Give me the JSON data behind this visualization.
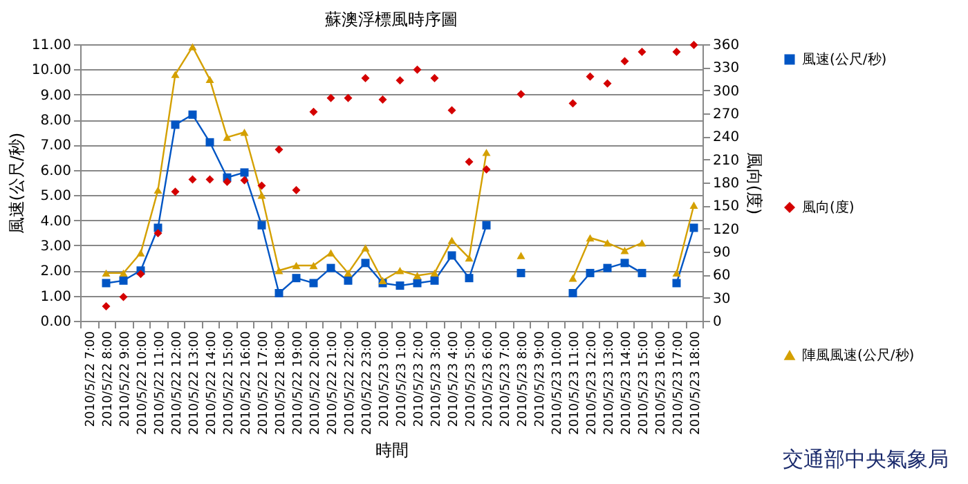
{
  "chart_data": {
    "type": "line",
    "title": "蘇澳浮標風時序圖",
    "xlabel": "時間",
    "ylabel": "風速(公尺/秒)",
    "y2label": "風向(度)",
    "categories": [
      "2010/5/22 7:00",
      "2010/5/22 8:00",
      "2010/5/22 9:00",
      "2010/5/22 10:00",
      "2010/5/22 11:00",
      "2010/5/22 12:00",
      "2010/5/22 13:00",
      "2010/5/22 14:00",
      "2010/5/22 15:00",
      "2010/5/22 16:00",
      "2010/5/22 17:00",
      "2010/5/22 18:00",
      "2010/5/22 19:00",
      "2010/5/22 20:00",
      "2010/5/22 21:00",
      "2010/5/22 22:00",
      "2010/5/22 23:00",
      "2010/5/23 0:00",
      "2010/5/23 1:00",
      "2010/5/23 2:00",
      "2010/5/23 3:00",
      "2010/5/23 4:00",
      "2010/5/23 5:00",
      "2010/5/23 6:00",
      "2010/5/23 7:00",
      "2010/5/23 8:00",
      "2010/5/23 9:00",
      "2010/5/23 10:00",
      "2010/5/23 11:00",
      "2010/5/23 12:00",
      "2010/5/23 13:00",
      "2010/5/23 14:00",
      "2010/5/23 15:00",
      "2010/5/23 16:00",
      "2010/5/23 17:00",
      "2010/5/23 18:00"
    ],
    "series": [
      {
        "name": "風速(公尺/秒)",
        "axis": "y",
        "marker": "square",
        "color": "#0055c4",
        "values": [
          null,
          1.5,
          1.6,
          2.0,
          3.7,
          7.8,
          8.2,
          7.1,
          5.7,
          5.9,
          3.8,
          1.1,
          1.7,
          1.5,
          2.1,
          1.6,
          2.3,
          1.5,
          1.4,
          1.5,
          1.6,
          2.6,
          1.7,
          3.8,
          null,
          1.9,
          null,
          null,
          1.1,
          1.9,
          2.1,
          2.3,
          1.9,
          null,
          1.5,
          3.7
        ]
      },
      {
        "name": "風向(度)",
        "type": "scatter",
        "axis": "y2",
        "marker": "diamond",
        "color": "#d40000",
        "values": [
          null,
          19,
          31,
          61,
          114,
          168,
          184,
          184,
          181,
          183,
          176,
          223,
          170,
          272,
          290,
          290,
          316,
          288,
          313,
          327,
          316,
          274,
          207,
          197,
          null,
          295,
          null,
          null,
          283,
          318,
          309,
          338,
          350,
          null,
          350,
          359
        ]
      },
      {
        "name": "陣風風速(公尺/秒)",
        "axis": "y",
        "marker": "triangle",
        "color": "#d4a000",
        "values": [
          null,
          1.9,
          1.9,
          2.7,
          5.2,
          9.8,
          10.9,
          9.6,
          7.3,
          7.5,
          5.0,
          2.0,
          2.2,
          2.2,
          2.7,
          1.9,
          2.9,
          1.6,
          2.0,
          1.8,
          1.9,
          3.2,
          2.5,
          6.7,
          null,
          2.6,
          null,
          null,
          1.7,
          3.3,
          3.1,
          2.8,
          3.1,
          null,
          1.9,
          4.6
        ]
      }
    ],
    "ylim": [
      0,
      11
    ],
    "yticks": [
      {
        "value": 0,
        "label": "0.00"
      },
      {
        "value": 1,
        "label": "1.00"
      },
      {
        "value": 2,
        "label": "2.00"
      },
      {
        "value": 3,
        "label": "3.00"
      },
      {
        "value": 4,
        "label": "4.00"
      },
      {
        "value": 5,
        "label": "5.00"
      },
      {
        "value": 6,
        "label": "6.00"
      },
      {
        "value": 7,
        "label": "7.00"
      },
      {
        "value": 8,
        "label": "8.00"
      },
      {
        "value": 9,
        "label": "9.00"
      },
      {
        "value": 10,
        "label": "10.00"
      },
      {
        "value": 11,
        "label": "11.00"
      }
    ],
    "y2lim": [
      0,
      360
    ],
    "y2ticks": [
      0,
      30,
      60,
      90,
      120,
      150,
      180,
      210,
      240,
      270,
      300,
      330,
      360
    ],
    "grid": "y",
    "legend": "right",
    "annotations": [
      "交通部中央氣象局"
    ]
  }
}
